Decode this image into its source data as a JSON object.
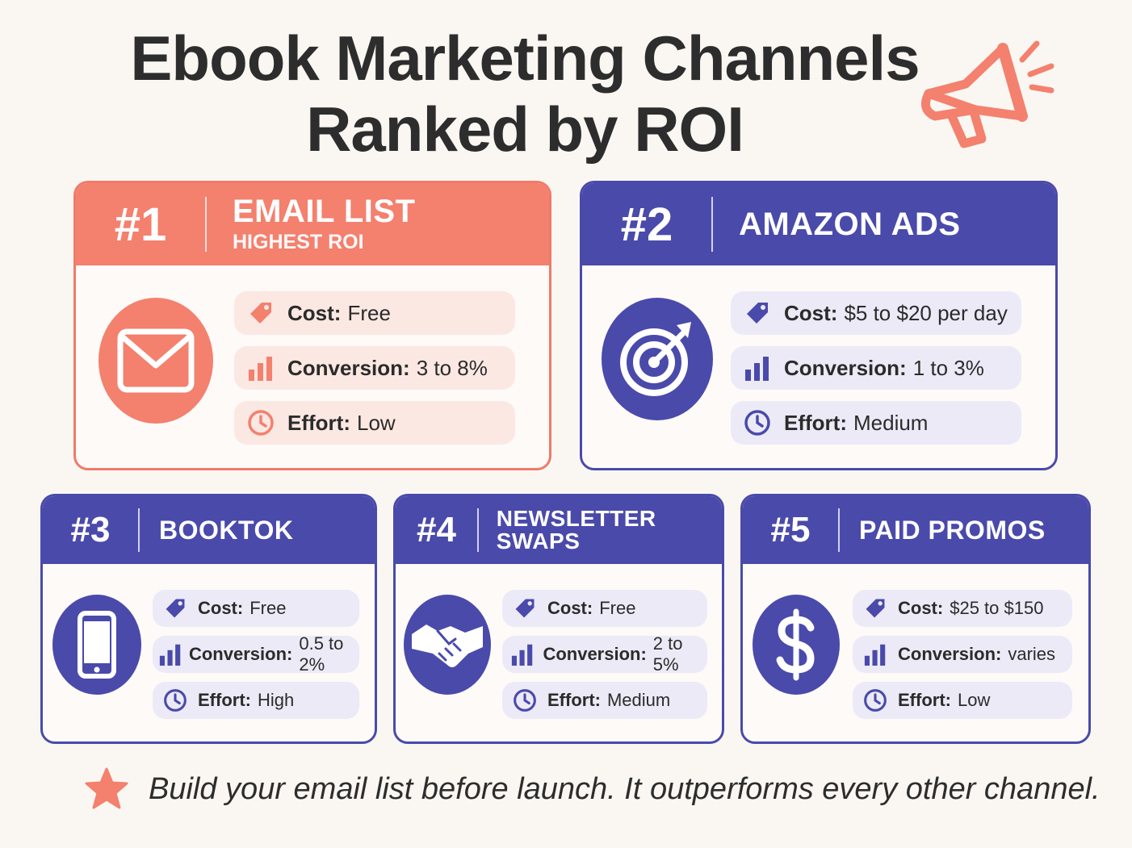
{
  "title": {
    "line1": "Ebook Marketing Channels",
    "line2": "Ranked by ROI"
  },
  "colors": {
    "coral": "#f4806e",
    "indigo": "#4a4aab",
    "background": "#faf7f2"
  },
  "channels": [
    {
      "rank": "#1",
      "name": "EMAIL LIST",
      "subtitle": "HIGHEST ROI",
      "icon": "envelope-icon",
      "cost_label": "Cost:",
      "cost": "Free",
      "conversion_label": "Conversion:",
      "conversion": "3 to 8%",
      "effort_label": "Effort:",
      "effort": "Low"
    },
    {
      "rank": "#2",
      "name": "AMAZON ADS",
      "icon": "target-icon",
      "cost_label": "Cost:",
      "cost": "$5 to $20 per day",
      "conversion_label": "Conversion:",
      "conversion": "1 to 3%",
      "effort_label": "Effort:",
      "effort": "Medium"
    },
    {
      "rank": "#3",
      "name": "BOOKTOK",
      "icon": "smartphone-icon",
      "cost_label": "Cost:",
      "cost": "Free",
      "conversion_label": "Conversion:",
      "conversion": "0.5 to 2%",
      "effort_label": "Effort:",
      "effort": "High"
    },
    {
      "rank": "#4",
      "name": "NEWSLETTER SWAPS",
      "icon": "handshake-icon",
      "cost_label": "Cost:",
      "cost": "Free",
      "conversion_label": "Conversion:",
      "conversion": "2 to 5%",
      "effort_label": "Effort:",
      "effort": "Medium"
    },
    {
      "rank": "#5",
      "name": "PAID PROMOS",
      "icon": "dollar-icon",
      "cost_label": "Cost:",
      "cost": "$25 to $150",
      "conversion_label": "Conversion:",
      "conversion": "varies",
      "effort_label": "Effort:",
      "effort": "Low"
    }
  ],
  "footer": {
    "icon": "star-icon",
    "text": "Build your email list before launch. It outperforms every other channel."
  }
}
